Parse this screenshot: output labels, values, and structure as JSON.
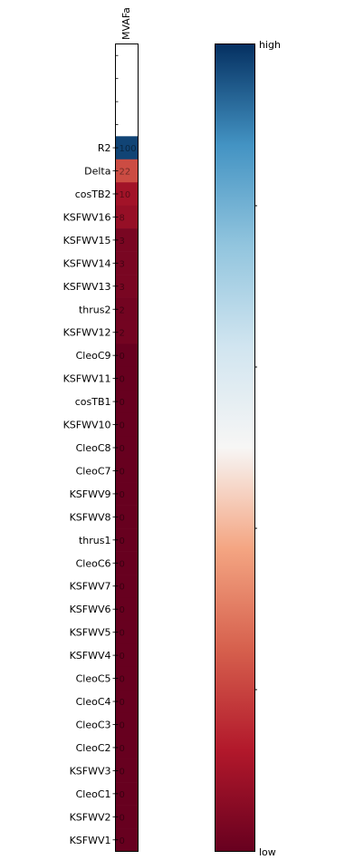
{
  "chart_data": {
    "type": "heatmap",
    "column_label": "MVAFa",
    "rows": [
      "R2",
      "Delta",
      "cosTB2",
      "KSFWV16",
      "KSFWV15",
      "KSFWV14",
      "KSFWV13",
      "thrus2",
      "KSFWV12",
      "CleoC9",
      "KSFWV11",
      "cosTB1",
      "KSFWV10",
      "CleoC8",
      "CleoC7",
      "KSFWV9",
      "KSFWV8",
      "thrus1",
      "CleoC6",
      "KSFWV7",
      "KSFWV6",
      "KSFWV5",
      "KSFWV4",
      "CleoC5",
      "CleoC4",
      "CleoC3",
      "CleoC2",
      "KSFWV3",
      "CleoC1",
      "KSFWV2",
      "KSFWV1"
    ],
    "values": [
      100,
      22,
      10,
      8,
      3,
      3,
      3,
      2,
      2,
      0,
      0,
      0,
      0,
      0,
      0,
      0,
      0,
      0,
      0,
      0,
      0,
      0,
      0,
      0,
      0,
      0,
      0,
      0,
      0,
      0,
      0
    ],
    "cell_labels": [
      "100",
      "22",
      "10",
      "8",
      "3",
      "3",
      "3",
      "2",
      "2",
      "0",
      "0",
      "0",
      "0",
      "0",
      "0",
      "0",
      "0",
      "0",
      "0",
      "0",
      "0",
      "0",
      "0",
      "0",
      "0",
      "0",
      "0",
      "0",
      "0",
      "0",
      "0"
    ],
    "empty_rows_above": 4,
    "colorbar": {
      "high_label": "high",
      "low_label": "low",
      "colormap": "RdBu"
    }
  }
}
